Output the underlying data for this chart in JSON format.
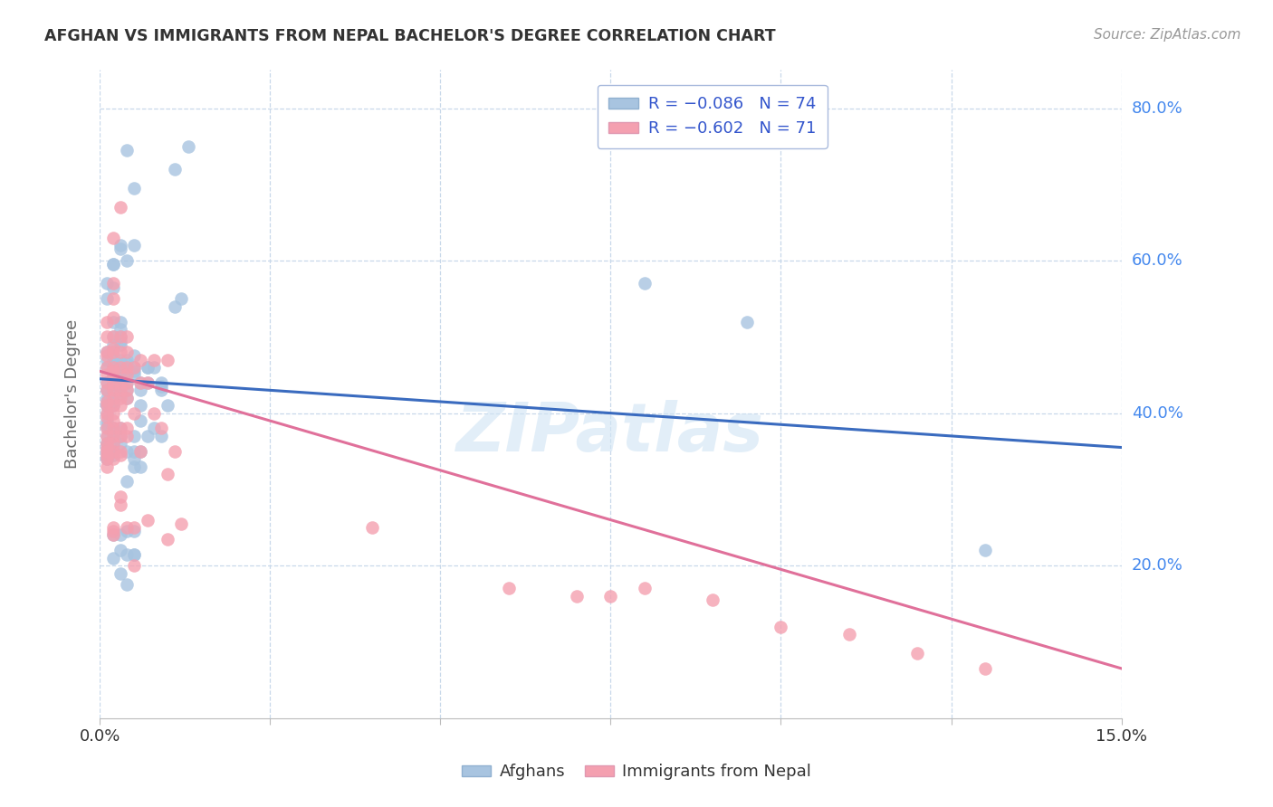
{
  "title": "AFGHAN VS IMMIGRANTS FROM NEPAL BACHELOR'S DEGREE CORRELATION CHART",
  "source": "Source: ZipAtlas.com",
  "ylabel": "Bachelor's Degree",
  "afghan_color": "#a8c4e0",
  "nepal_color": "#f4a0b0",
  "afghan_line_color": "#3a6bbf",
  "nepal_line_color": "#e0709a",
  "xlim": [
    0.0,
    0.15
  ],
  "ylim": [
    0.0,
    0.85
  ],
  "afghan_line": [
    [
      0.0,
      0.445
    ],
    [
      0.15,
      0.355
    ]
  ],
  "nepal_line": [
    [
      0.0,
      0.455
    ],
    [
      0.15,
      0.065
    ]
  ],
  "afghan_points": [
    [
      0.001,
      0.57
    ],
    [
      0.001,
      0.55
    ],
    [
      0.001,
      0.48
    ],
    [
      0.001,
      0.47
    ],
    [
      0.001,
      0.46
    ],
    [
      0.001,
      0.44
    ],
    [
      0.001,
      0.43
    ],
    [
      0.001,
      0.43
    ],
    [
      0.001,
      0.42
    ],
    [
      0.001,
      0.415
    ],
    [
      0.001,
      0.41
    ],
    [
      0.001,
      0.41
    ],
    [
      0.001,
      0.4
    ],
    [
      0.001,
      0.39
    ],
    [
      0.001,
      0.385
    ],
    [
      0.001,
      0.38
    ],
    [
      0.001,
      0.37
    ],
    [
      0.001,
      0.36
    ],
    [
      0.001,
      0.36
    ],
    [
      0.001,
      0.355
    ],
    [
      0.001,
      0.35
    ],
    [
      0.001,
      0.345
    ],
    [
      0.001,
      0.34
    ],
    [
      0.001,
      0.34
    ],
    [
      0.002,
      0.595
    ],
    [
      0.002,
      0.595
    ],
    [
      0.002,
      0.565
    ],
    [
      0.002,
      0.52
    ],
    [
      0.002,
      0.5
    ],
    [
      0.002,
      0.49
    ],
    [
      0.002,
      0.475
    ],
    [
      0.002,
      0.47
    ],
    [
      0.002,
      0.46
    ],
    [
      0.002,
      0.455
    ],
    [
      0.002,
      0.45
    ],
    [
      0.002,
      0.445
    ],
    [
      0.002,
      0.44
    ],
    [
      0.002,
      0.44
    ],
    [
      0.002,
      0.435
    ],
    [
      0.002,
      0.43
    ],
    [
      0.002,
      0.425
    ],
    [
      0.002,
      0.415
    ],
    [
      0.002,
      0.41
    ],
    [
      0.002,
      0.38
    ],
    [
      0.002,
      0.375
    ],
    [
      0.002,
      0.37
    ],
    [
      0.002,
      0.36
    ],
    [
      0.002,
      0.35
    ],
    [
      0.002,
      0.345
    ],
    [
      0.002,
      0.35
    ],
    [
      0.002,
      0.24
    ],
    [
      0.002,
      0.21
    ],
    [
      0.003,
      0.62
    ],
    [
      0.003,
      0.615
    ],
    [
      0.003,
      0.52
    ],
    [
      0.003,
      0.51
    ],
    [
      0.003,
      0.5
    ],
    [
      0.003,
      0.495
    ],
    [
      0.003,
      0.49
    ],
    [
      0.003,
      0.47
    ],
    [
      0.003,
      0.465
    ],
    [
      0.003,
      0.455
    ],
    [
      0.003,
      0.45
    ],
    [
      0.003,
      0.44
    ],
    [
      0.003,
      0.435
    ],
    [
      0.003,
      0.425
    ],
    [
      0.003,
      0.38
    ],
    [
      0.003,
      0.37
    ],
    [
      0.003,
      0.36
    ],
    [
      0.003,
      0.24
    ],
    [
      0.003,
      0.22
    ],
    [
      0.003,
      0.19
    ],
    [
      0.004,
      0.745
    ],
    [
      0.004,
      0.6
    ],
    [
      0.004,
      0.47
    ],
    [
      0.004,
      0.465
    ],
    [
      0.004,
      0.455
    ],
    [
      0.004,
      0.44
    ],
    [
      0.004,
      0.43
    ],
    [
      0.004,
      0.42
    ],
    [
      0.004,
      0.35
    ],
    [
      0.004,
      0.31
    ],
    [
      0.004,
      0.245
    ],
    [
      0.004,
      0.215
    ],
    [
      0.004,
      0.175
    ],
    [
      0.005,
      0.695
    ],
    [
      0.005,
      0.62
    ],
    [
      0.005,
      0.475
    ],
    [
      0.005,
      0.46
    ],
    [
      0.005,
      0.455
    ],
    [
      0.005,
      0.45
    ],
    [
      0.005,
      0.37
    ],
    [
      0.005,
      0.35
    ],
    [
      0.005,
      0.34
    ],
    [
      0.005,
      0.33
    ],
    [
      0.005,
      0.245
    ],
    [
      0.005,
      0.215
    ],
    [
      0.005,
      0.215
    ],
    [
      0.006,
      0.44
    ],
    [
      0.006,
      0.43
    ],
    [
      0.006,
      0.41
    ],
    [
      0.006,
      0.39
    ],
    [
      0.006,
      0.35
    ],
    [
      0.006,
      0.33
    ],
    [
      0.007,
      0.46
    ],
    [
      0.007,
      0.46
    ],
    [
      0.007,
      0.44
    ],
    [
      0.007,
      0.37
    ],
    [
      0.008,
      0.46
    ],
    [
      0.008,
      0.38
    ],
    [
      0.009,
      0.44
    ],
    [
      0.009,
      0.435
    ],
    [
      0.009,
      0.43
    ],
    [
      0.009,
      0.37
    ],
    [
      0.01,
      0.41
    ],
    [
      0.011,
      0.72
    ],
    [
      0.011,
      0.54
    ],
    [
      0.012,
      0.55
    ],
    [
      0.013,
      0.75
    ],
    [
      0.08,
      0.57
    ],
    [
      0.095,
      0.52
    ],
    [
      0.13,
      0.22
    ]
  ],
  "nepal_points": [
    [
      0.001,
      0.52
    ],
    [
      0.001,
      0.5
    ],
    [
      0.001,
      0.48
    ],
    [
      0.001,
      0.475
    ],
    [
      0.001,
      0.46
    ],
    [
      0.001,
      0.45
    ],
    [
      0.001,
      0.44
    ],
    [
      0.001,
      0.43
    ],
    [
      0.001,
      0.415
    ],
    [
      0.001,
      0.41
    ],
    [
      0.001,
      0.4
    ],
    [
      0.001,
      0.395
    ],
    [
      0.001,
      0.38
    ],
    [
      0.001,
      0.37
    ],
    [
      0.001,
      0.36
    ],
    [
      0.001,
      0.355
    ],
    [
      0.001,
      0.35
    ],
    [
      0.001,
      0.345
    ],
    [
      0.001,
      0.34
    ],
    [
      0.001,
      0.33
    ],
    [
      0.002,
      0.63
    ],
    [
      0.002,
      0.57
    ],
    [
      0.002,
      0.55
    ],
    [
      0.002,
      0.525
    ],
    [
      0.002,
      0.5
    ],
    [
      0.002,
      0.485
    ],
    [
      0.002,
      0.48
    ],
    [
      0.002,
      0.46
    ],
    [
      0.002,
      0.455
    ],
    [
      0.002,
      0.45
    ],
    [
      0.002,
      0.44
    ],
    [
      0.002,
      0.43
    ],
    [
      0.002,
      0.42
    ],
    [
      0.002,
      0.41
    ],
    [
      0.002,
      0.4
    ],
    [
      0.002,
      0.39
    ],
    [
      0.002,
      0.38
    ],
    [
      0.002,
      0.37
    ],
    [
      0.002,
      0.36
    ],
    [
      0.002,
      0.35
    ],
    [
      0.002,
      0.34
    ],
    [
      0.002,
      0.25
    ],
    [
      0.002,
      0.245
    ],
    [
      0.002,
      0.24
    ],
    [
      0.003,
      0.67
    ],
    [
      0.003,
      0.5
    ],
    [
      0.003,
      0.48
    ],
    [
      0.003,
      0.46
    ],
    [
      0.003,
      0.44
    ],
    [
      0.003,
      0.43
    ],
    [
      0.003,
      0.42
    ],
    [
      0.003,
      0.41
    ],
    [
      0.003,
      0.38
    ],
    [
      0.003,
      0.37
    ],
    [
      0.003,
      0.35
    ],
    [
      0.003,
      0.345
    ],
    [
      0.003,
      0.29
    ],
    [
      0.003,
      0.28
    ],
    [
      0.004,
      0.5
    ],
    [
      0.004,
      0.48
    ],
    [
      0.004,
      0.46
    ],
    [
      0.004,
      0.45
    ],
    [
      0.004,
      0.44
    ],
    [
      0.004,
      0.43
    ],
    [
      0.004,
      0.42
    ],
    [
      0.004,
      0.38
    ],
    [
      0.004,
      0.37
    ],
    [
      0.004,
      0.25
    ],
    [
      0.005,
      0.46
    ],
    [
      0.005,
      0.4
    ],
    [
      0.005,
      0.25
    ],
    [
      0.005,
      0.2
    ],
    [
      0.006,
      0.47
    ],
    [
      0.006,
      0.44
    ],
    [
      0.006,
      0.35
    ],
    [
      0.007,
      0.44
    ],
    [
      0.007,
      0.26
    ],
    [
      0.008,
      0.47
    ],
    [
      0.008,
      0.4
    ],
    [
      0.009,
      0.38
    ],
    [
      0.01,
      0.47
    ],
    [
      0.01,
      0.32
    ],
    [
      0.01,
      0.235
    ],
    [
      0.011,
      0.35
    ],
    [
      0.012,
      0.255
    ],
    [
      0.04,
      0.25
    ],
    [
      0.06,
      0.17
    ],
    [
      0.07,
      0.16
    ],
    [
      0.075,
      0.16
    ],
    [
      0.08,
      0.17
    ],
    [
      0.09,
      0.155
    ],
    [
      0.1,
      0.12
    ],
    [
      0.11,
      0.11
    ],
    [
      0.12,
      0.085
    ],
    [
      0.13,
      0.065
    ]
  ]
}
